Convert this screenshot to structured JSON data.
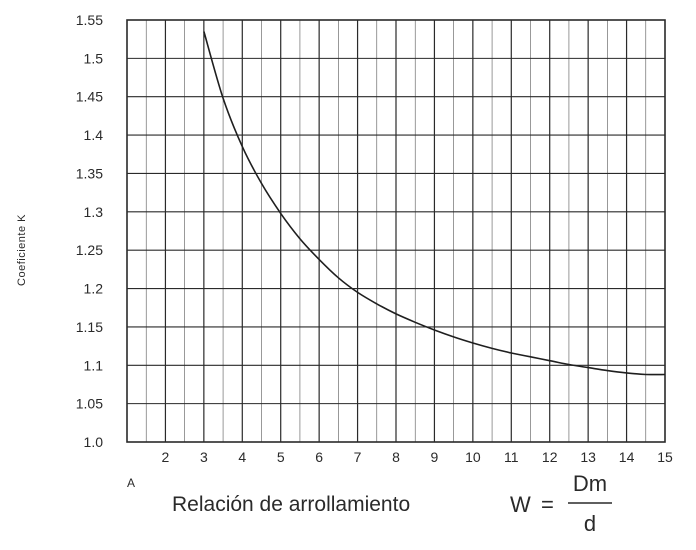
{
  "chart_data": {
    "type": "line",
    "ylabel": "Coeficiente K",
    "xlabel": "Relación de arrollamiento",
    "formula": {
      "lhs": "W",
      "eq": "=",
      "numerator": "Dm",
      "denominator": "d"
    },
    "corner_label": "A",
    "xlim": [
      1,
      15
    ],
    "ylim": [
      1.0,
      1.55
    ],
    "x_ticks": [
      "2",
      "3",
      "4",
      "5",
      "6",
      "7",
      "8",
      "9",
      "10",
      "11",
      "12",
      "13",
      "14",
      "15"
    ],
    "y_ticks": [
      "1.0",
      "1.05",
      "1.1",
      "1.15",
      "1.2",
      "1.25",
      "1.3",
      "1.35",
      "1.4",
      "1.45",
      "1.5",
      "1.55"
    ],
    "grid": true,
    "series": [
      {
        "x": [
          3,
          3.5,
          4,
          4.5,
          5,
          5.5,
          6,
          6.5,
          7,
          7.5,
          8,
          8.5,
          9,
          9.5,
          10,
          10.5,
          11,
          11.5,
          12,
          12.5,
          13,
          13.5,
          14,
          14.5,
          15
        ],
        "y": [
          1.535,
          1.448,
          1.385,
          1.337,
          1.298,
          1.265,
          1.238,
          1.214,
          1.195,
          1.18,
          1.167,
          1.156,
          1.146,
          1.137,
          1.129,
          1.122,
          1.116,
          1.111,
          1.106,
          1.101,
          1.097,
          1.093,
          1.09,
          1.088,
          1.088
        ]
      }
    ]
  }
}
